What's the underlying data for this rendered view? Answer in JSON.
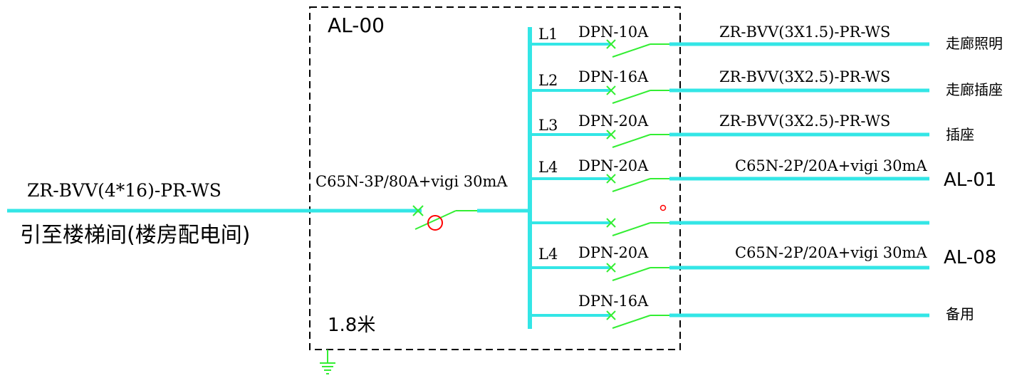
{
  "colors": {
    "cable": "#33e6e6",
    "breaker": "#33ee33",
    "rcd_mark": "#ff0000",
    "frame": "#000000",
    "text": "#000000"
  },
  "panel": {
    "name": "AL-00",
    "mount_height": "1.8米"
  },
  "incoming": {
    "cable": "ZR-BVV(4*16)-PR-WS",
    "source": "引至楼梯间(楼房配电间)",
    "main_breaker": "C65N-3P/80A+vigi 30mA"
  },
  "circuits": [
    {
      "phase": "L1",
      "breaker": "DPN-10A",
      "cable": "ZR-BVV(3X1.5)-PR-WS",
      "load": "走廊照明"
    },
    {
      "phase": "L2",
      "breaker": "DPN-16A",
      "cable": "ZR-BVV(3X2.5)-PR-WS",
      "load": "走廊插座"
    },
    {
      "phase": "L3",
      "breaker": "DPN-20A",
      "cable": "ZR-BVV(3X2.5)-PR-WS",
      "load": "插座"
    },
    {
      "phase": "L4",
      "breaker": "DPN-20A",
      "cable": "C65N-2P/20A+vigi 30mA",
      "load": "AL-01"
    },
    {
      "phase": "",
      "breaker": "",
      "cable": "",
      "load": ""
    },
    {
      "phase": "L4",
      "breaker": "DPN-20A",
      "cable": "C65N-2P/20A+vigi 30mA",
      "load": "AL-08"
    },
    {
      "phase": "",
      "breaker": "DPN-16A",
      "cable": "",
      "load": "备用"
    }
  ]
}
